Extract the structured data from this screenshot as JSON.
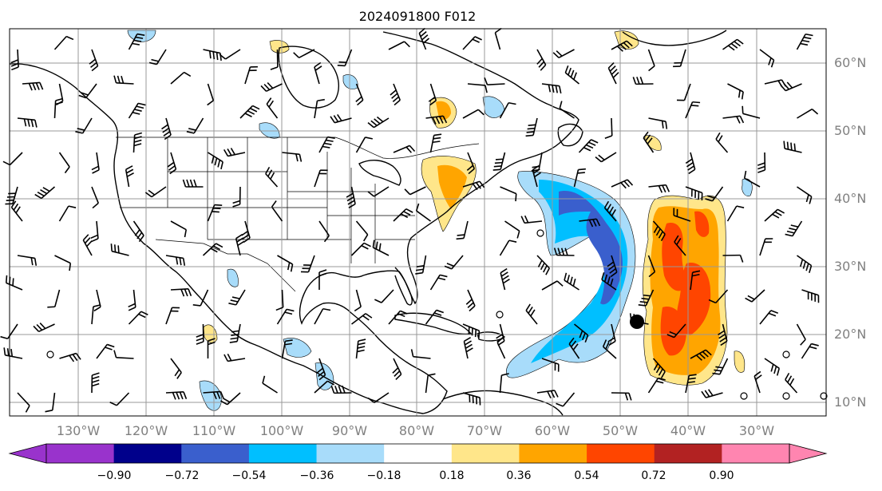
{
  "title": "2024091800 F012",
  "lon_labels": [
    "130°W",
    "120°W",
    "110°W",
    "100°W",
    "90°W",
    "80°W",
    "70°W",
    "60°W",
    "50°W",
    "40°W",
    "30°W"
  ],
  "lat_labels": [
    "60°N",
    "50°N",
    "40°N",
    "30°N",
    "20°N",
    "10°N"
  ],
  "colorbar": {
    "tick_labels": [
      "−0.90",
      "−0.72",
      "−0.54",
      "−0.36",
      "−0.18",
      "0.18",
      "0.36",
      "0.54",
      "0.72",
      "0.90"
    ],
    "colors": [
      "#9933cc",
      "#00008b",
      "#3a5fcd",
      "#00bfff",
      "#a8dcfa",
      "#ffffff",
      "#ffe68a",
      "#ffa500",
      "#ff4500",
      "#b22222",
      "#ff85b0"
    ]
  },
  "fill_colors": {
    "blue_light": "#a8dcfa",
    "blue_mid": "#00bfff",
    "blue_dark": "#3a5fcd",
    "yellow": "#ffe68a",
    "orange": "#ffa500",
    "red": "#ff4500"
  },
  "storm_marker": {
    "lon": -47.5,
    "lat": 22
  }
}
